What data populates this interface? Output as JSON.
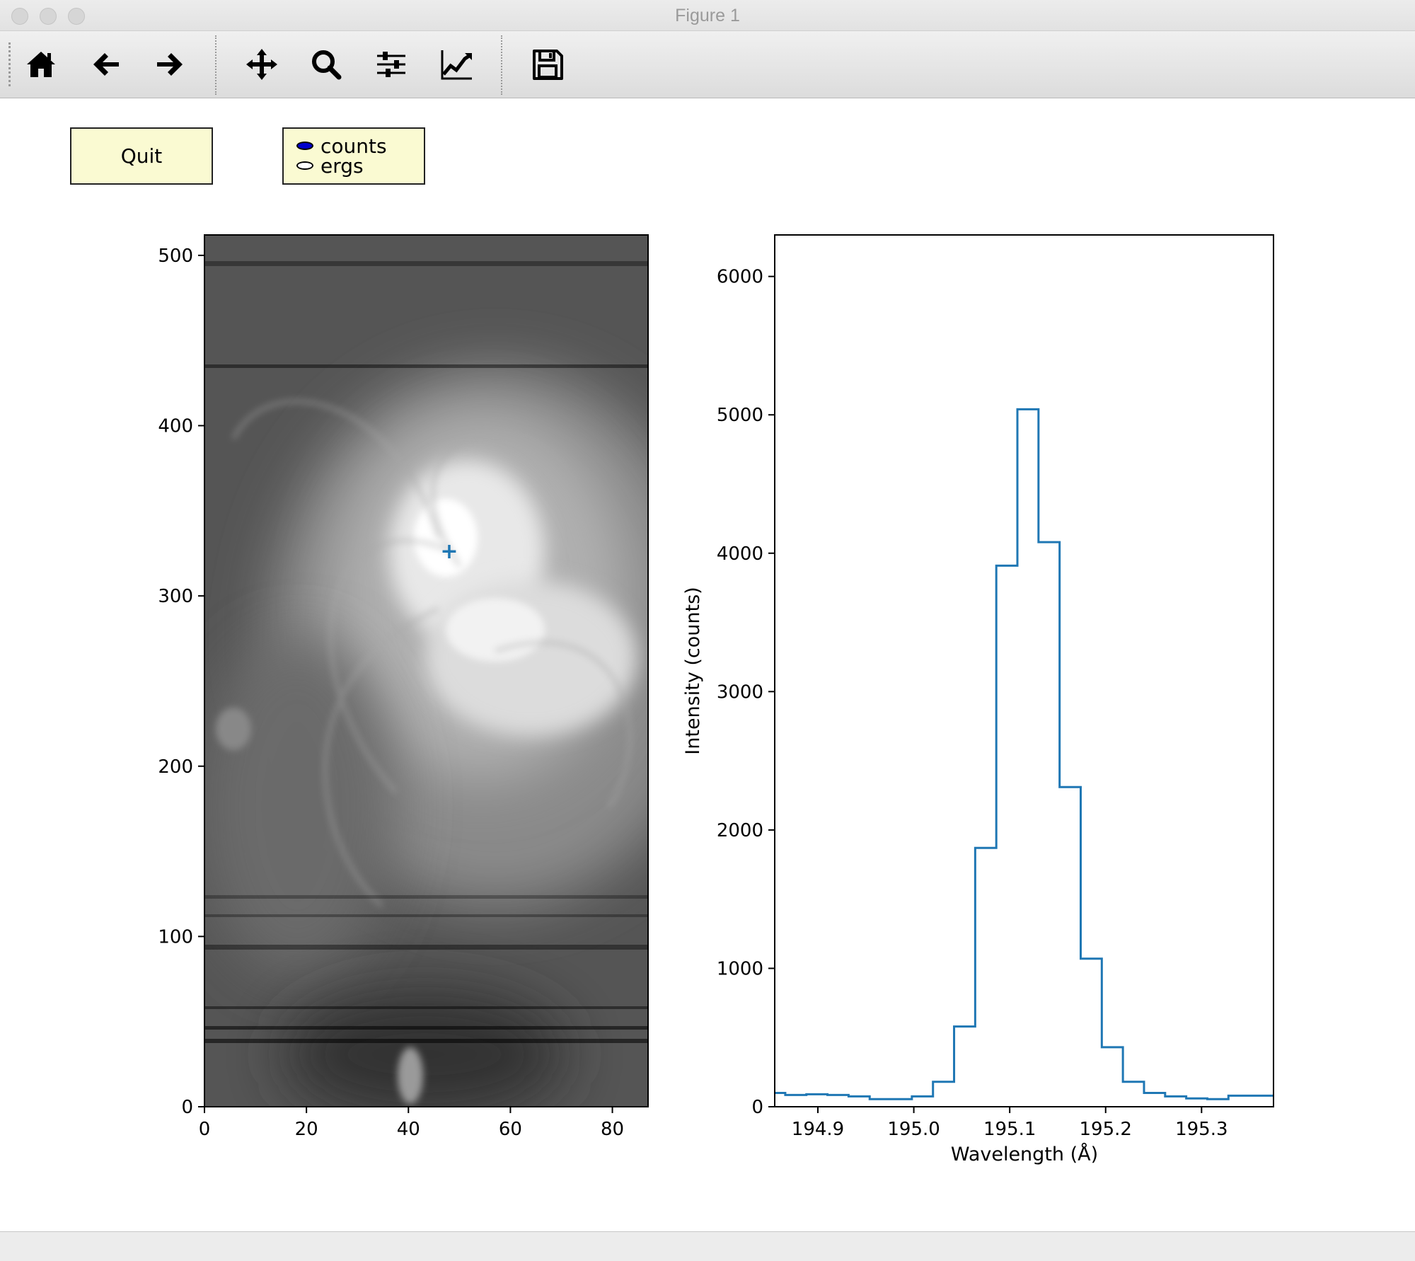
{
  "window": {
    "title": "Figure 1"
  },
  "toolbar": {
    "icons": [
      "home-icon",
      "back-arrow-icon",
      "forward-arrow-icon",
      "pan-move-icon",
      "zoom-magnifier-icon",
      "subplots-sliders-icon",
      "edit-axes-icon",
      "save-floppy-icon"
    ]
  },
  "widgets": {
    "quit_label": "Quit",
    "radio_options": [
      {
        "label": "counts",
        "selected": true
      },
      {
        "label": "ergs",
        "selected": false
      }
    ]
  },
  "chart_data": [
    {
      "type": "heatmap",
      "colormap": "gray",
      "xlim": [
        0,
        87
      ],
      "ylim": [
        0,
        512
      ],
      "x_ticks": [
        0,
        20,
        40,
        60,
        80
      ],
      "y_ticks": [
        0,
        100,
        200,
        300,
        400,
        500
      ],
      "x_tick_labels": [
        "0",
        "20",
        "40",
        "60",
        "80"
      ],
      "y_tick_labels": [
        "0",
        "100",
        "200",
        "300",
        "400",
        "500"
      ],
      "marker": {
        "symbol": "+",
        "x": 48,
        "y": 326,
        "color": "#1f77b4"
      }
    },
    {
      "type": "line",
      "drawstyle": "steps-mid",
      "color": "#1f77b4",
      "xlabel": "Wavelength (Å)",
      "ylabel": "Intensity (counts)",
      "xlim": [
        194.855,
        195.375
      ],
      "ylim": [
        0,
        6300
      ],
      "x_ticks": [
        194.9,
        195.0,
        195.1,
        195.2,
        195.3
      ],
      "x_tick_labels": [
        "194.9",
        "195.0",
        "195.1",
        "195.2",
        "195.3"
      ],
      "y_ticks": [
        0,
        1000,
        2000,
        3000,
        4000,
        5000,
        6000
      ],
      "y_tick_labels": [
        "0",
        "1000",
        "2000",
        "3000",
        "4000",
        "5000",
        "6000"
      ],
      "x": [
        194.855,
        194.877,
        194.899,
        194.921,
        194.943,
        194.965,
        194.987,
        195.009,
        195.031,
        195.053,
        195.075,
        195.097,
        195.119,
        195.141,
        195.163,
        195.185,
        195.207,
        195.229,
        195.251,
        195.273,
        195.295,
        195.317,
        195.339,
        195.361,
        195.375
      ],
      "y": [
        100,
        85,
        90,
        85,
        75,
        55,
        55,
        75,
        180,
        580,
        1870,
        3910,
        5040,
        4080,
        2310,
        1070,
        430,
        180,
        100,
        75,
        60,
        55,
        80,
        80,
        80
      ]
    }
  ]
}
